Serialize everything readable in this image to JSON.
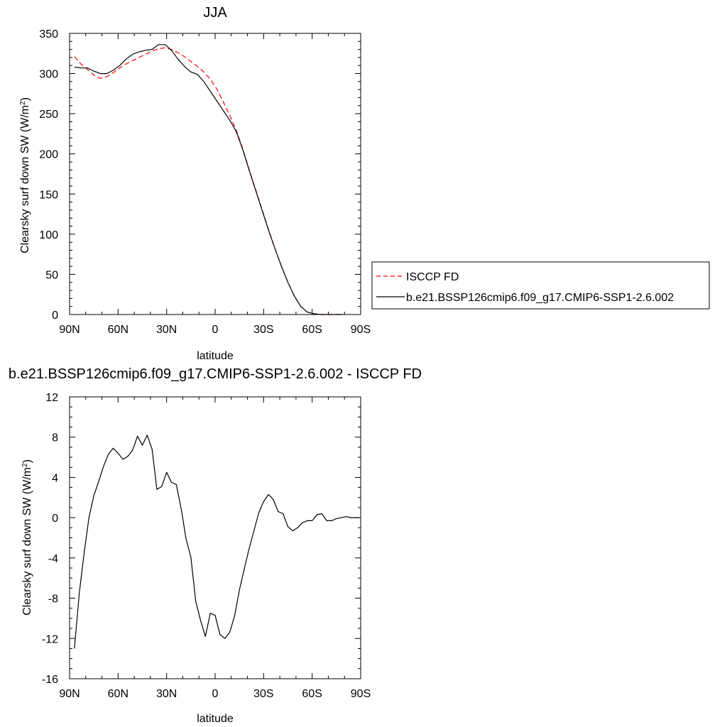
{
  "chart_data": [
    {
      "type": "line",
      "title": "JJA",
      "xlabel": "latitude",
      "ylabel": "Clearsky surf down SW (W/m",
      "ylabel_sup": "2",
      "ylabel_close": ")",
      "xlim": [
        90,
        -90
      ],
      "ylim": [
        0,
        350
      ],
      "xticks": [
        90,
        60,
        30,
        0,
        -30,
        -60,
        -90
      ],
      "xtick_labels": [
        "90N",
        "60N",
        "30N",
        "0",
        "30S",
        "60S",
        "90S"
      ],
      "yticks": [
        0,
        50,
        100,
        150,
        200,
        250,
        300,
        350
      ],
      "ytick_labels": [
        "0",
        "50",
        "100",
        "150",
        "200",
        "250",
        "300",
        "350"
      ],
      "legend_position": "right",
      "series": [
        {
          "name": "ISCCP FD",
          "color": "#ff0000",
          "dash": true,
          "x": [
            87,
            83,
            79,
            75,
            71,
            67,
            63,
            59,
            55,
            51,
            47,
            43,
            39,
            35,
            31,
            27,
            23,
            19,
            15,
            11,
            7,
            3,
            -1,
            -5,
            -9,
            -13,
            -17,
            -21,
            -25,
            -29,
            -33,
            -37,
            -41,
            -45,
            -49,
            -53,
            -57,
            -61,
            -65,
            -69,
            -73,
            -77,
            -79
          ],
          "y": [
            321,
            312,
            305,
            298,
            294,
            296,
            301,
            307,
            312,
            316,
            320,
            324,
            328,
            331,
            332,
            330,
            326,
            321,
            315,
            309,
            302,
            293,
            281,
            265,
            248,
            230,
            207,
            181,
            156,
            131,
            106,
            82,
            60,
            40,
            23,
            10,
            3,
            1,
            0,
            0,
            0,
            0,
            0
          ]
        },
        {
          "name": "b.e21.BSSP126cmip6.f09_g17.CMIP6-SSP1-2.6.002",
          "color": "#000000",
          "dash": false,
          "x": [
            87,
            83,
            79,
            75,
            71,
            67,
            63,
            59,
            55,
            51,
            47,
            43,
            39,
            35,
            31,
            27,
            23,
            19,
            15,
            11,
            7,
            3,
            -1,
            -5,
            -9,
            -13,
            -17,
            -21,
            -25,
            -29,
            -33,
            -37,
            -41,
            -45,
            -49,
            -53,
            -57,
            -61,
            -65,
            -69,
            -73,
            -77,
            -79
          ],
          "y": [
            308,
            307,
            307,
            303,
            300,
            300,
            304,
            310,
            318,
            324,
            327,
            329,
            330,
            336,
            336,
            329,
            318,
            309,
            302,
            299,
            290,
            278,
            266,
            254,
            242,
            228,
            206,
            180,
            155,
            130,
            105,
            82,
            60,
            40,
            23,
            10,
            3,
            1,
            0,
            0,
            0,
            0,
            0
          ]
        }
      ]
    },
    {
      "type": "line",
      "title": "b.e21.BSSP126cmip6.f09_g17.CMIP6-SSP1-2.6.002 - ISCCP FD",
      "xlabel": "latitude",
      "ylabel": "Clearsky surf down SW (W/m",
      "ylabel_sup": "2",
      "ylabel_close": ")",
      "xlim": [
        90,
        -90
      ],
      "ylim": [
        -16,
        12
      ],
      "xticks": [
        90,
        60,
        30,
        0,
        -30,
        -60,
        -90
      ],
      "xtick_labels": [
        "90N",
        "60N",
        "30N",
        "0",
        "30S",
        "60S",
        "90S"
      ],
      "yticks": [
        -16,
        -12,
        -8,
        -4,
        0,
        4,
        8,
        12
      ],
      "ytick_labels": [
        "-16",
        "-12",
        "-8",
        "-4",
        "0",
        "4",
        "8",
        "12"
      ],
      "series": [
        {
          "color": "#000000",
          "dash": false,
          "x": [
            87,
            84,
            81,
            78,
            75,
            72,
            69,
            66,
            63,
            60,
            57,
            54,
            51,
            48,
            45,
            42,
            39,
            36,
            33,
            30,
            27,
            24,
            21,
            18,
            15,
            12,
            9,
            6,
            3,
            0,
            -3,
            -6,
            -9,
            -12,
            -15,
            -18,
            -21,
            -24,
            -27,
            -30,
            -33,
            -36,
            -39,
            -42,
            -45,
            -48,
            -51,
            -54,
            -57,
            -60,
            -63,
            -66,
            -69,
            -72,
            -75,
            -78,
            -81,
            -84,
            -87,
            -89
          ],
          "y": [
            -13,
            -7.5,
            -3.5,
            0,
            2.2,
            3.6,
            5.1,
            6.3,
            6.9,
            6.4,
            5.8,
            6.1,
            6.7,
            8.1,
            7.2,
            8.2,
            6.8,
            2.8,
            3.1,
            4.5,
            3.5,
            3.3,
            0.9,
            -2.1,
            -3.9,
            -8.3,
            -10.2,
            -11.8,
            -9.5,
            -9.7,
            -11.6,
            -12,
            -11.4,
            -9.8,
            -7.2,
            -5.1,
            -3.1,
            -1.3,
            0.5,
            1.6,
            2.3,
            1.8,
            0.6,
            0.4,
            -0.9,
            -1.3,
            -1,
            -0.5,
            -0.3,
            -0.3,
            0.3,
            0.4,
            -0.3,
            -0.3,
            -0.1,
            0,
            0.1,
            0,
            0,
            0
          ]
        }
      ]
    }
  ],
  "legend": {
    "items": [
      {
        "label": "ISCCP FD",
        "color": "#ff0000",
        "dash": true
      },
      {
        "label": "b.e21.BSSP126cmip6.f09_g17.CMIP6-SSP1-2.6.002",
        "color": "#000000",
        "dash": false
      }
    ]
  }
}
